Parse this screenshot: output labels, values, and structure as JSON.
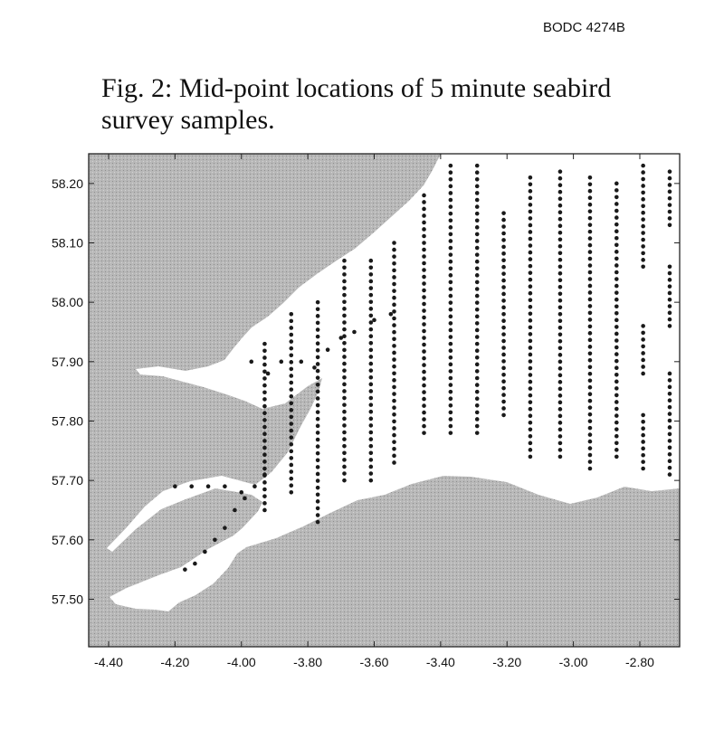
{
  "document": {
    "reference": "BODC 4274B",
    "caption_line1": "Fig. 2: Mid-point locations of 5 minute seabird",
    "caption_line2": "survey samples."
  },
  "map": {
    "colors": {
      "land": "#b8b8b8",
      "sea": "#ffffff",
      "points": "#1a1a1a",
      "frame": "#222222"
    },
    "lon_range": [
      -4.46,
      -2.68
    ],
    "lat_range": [
      57.42,
      58.25
    ],
    "x_ticks": [
      -4.4,
      -4.2,
      -4.0,
      -3.8,
      -3.6,
      -3.4,
      -3.2,
      -3.0,
      -2.8
    ],
    "x_tick_labels": [
      "-4.40",
      "-4.20",
      "-4.00",
      "-3.80",
      "-3.60",
      "-3.40",
      "-3.20",
      "-3.00",
      "-2.80"
    ],
    "y_ticks": [
      57.5,
      57.6,
      57.7,
      57.8,
      57.9,
      58.0,
      58.1,
      58.2
    ],
    "y_tick_labels": [
      "57.50",
      "57.60",
      "57.70",
      "57.80",
      "57.90",
      "58.00",
      "58.10",
      "58.20"
    ],
    "transects": [
      {
        "lon": -2.71,
        "lat_from": 58.22,
        "lat_to": 58.13
      },
      {
        "lon": -2.71,
        "lat_from": 58.06,
        "lat_to": 57.96
      },
      {
        "lon": -2.71,
        "lat_from": 57.88,
        "lat_to": 57.71
      },
      {
        "lon": -2.79,
        "lat_from": 58.23,
        "lat_to": 58.06
      },
      {
        "lon": -2.79,
        "lat_from": 57.96,
        "lat_to": 57.88
      },
      {
        "lon": -2.79,
        "lat_from": 57.81,
        "lat_to": 57.72
      },
      {
        "lon": -2.87,
        "lat_from": 58.2,
        "lat_to": 57.74
      },
      {
        "lon": -2.95,
        "lat_from": 58.21,
        "lat_to": 57.72
      },
      {
        "lon": -3.04,
        "lat_from": 58.22,
        "lat_to": 57.74
      },
      {
        "lon": -3.13,
        "lat_from": 58.21,
        "lat_to": 57.74
      },
      {
        "lon": -3.21,
        "lat_from": 58.15,
        "lat_to": 57.81
      },
      {
        "lon": -3.29,
        "lat_from": 58.23,
        "lat_to": 57.78
      },
      {
        "lon": -3.37,
        "lat_from": 58.23,
        "lat_to": 57.78
      },
      {
        "lon": -3.45,
        "lat_from": 58.18,
        "lat_to": 57.78
      },
      {
        "lon": -3.54,
        "lat_from": 58.1,
        "lat_to": 57.73
      },
      {
        "lon": -3.61,
        "lat_from": 58.07,
        "lat_to": 57.7
      },
      {
        "lon": -3.69,
        "lat_from": 58.07,
        "lat_to": 57.7
      },
      {
        "lon": -3.77,
        "lat_from": 58.0,
        "lat_to": 57.63
      },
      {
        "lon": -3.85,
        "lat_from": 57.98,
        "lat_to": 57.68
      },
      {
        "lon": -3.93,
        "lat_from": 57.93,
        "lat_to": 57.65
      }
    ],
    "coast_track": [
      [
        -3.93,
        57.71
      ],
      [
        -3.96,
        57.69
      ],
      [
        -3.99,
        57.67
      ],
      [
        -4.02,
        57.65
      ],
      [
        -4.05,
        57.62
      ],
      [
        -4.08,
        57.6
      ],
      [
        -4.11,
        57.58
      ],
      [
        -4.14,
        57.56
      ],
      [
        -4.17,
        57.55
      ],
      [
        -4.2,
        57.69
      ],
      [
        -4.15,
        57.69
      ],
      [
        -4.1,
        57.69
      ],
      [
        -4.05,
        57.69
      ],
      [
        -4.0,
        57.68
      ],
      [
        -3.97,
        57.9
      ],
      [
        -3.92,
        57.88
      ],
      [
        -3.88,
        57.9
      ],
      [
        -3.82,
        57.9
      ],
      [
        -3.78,
        57.89
      ],
      [
        -3.74,
        57.92
      ],
      [
        -3.7,
        57.94
      ],
      [
        -3.66,
        57.95
      ],
      [
        -3.6,
        57.97
      ],
      [
        -3.55,
        57.98
      ]
    ]
  }
}
